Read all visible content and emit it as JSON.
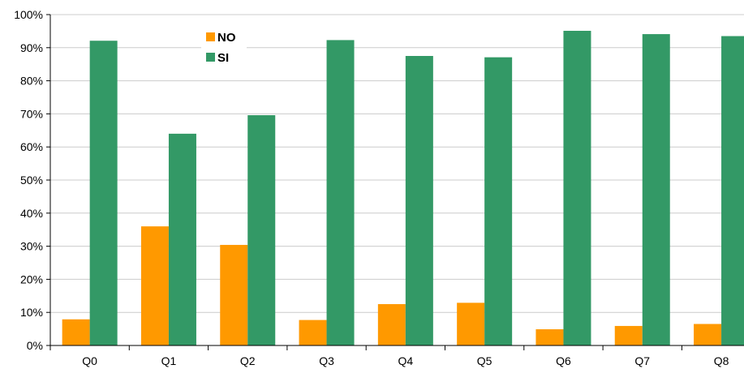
{
  "chart_data": {
    "type": "bar",
    "title": "",
    "xlabel": "",
    "ylabel": "",
    "categories": [
      "Q0",
      "Q1",
      "Q2",
      "Q3",
      "Q4",
      "Q5",
      "Q6",
      "Q7",
      "Q8"
    ],
    "series": [
      {
        "name": "NO",
        "color": "#FF9900",
        "values": [
          7.9,
          36.0,
          30.4,
          7.7,
          12.5,
          12.9,
          4.9,
          5.9,
          6.5
        ]
      },
      {
        "name": "SI",
        "color": "#339966",
        "values": [
          92.1,
          64.0,
          69.6,
          92.3,
          87.5,
          87.1,
          95.1,
          94.1,
          93.5
        ]
      }
    ],
    "ylim": [
      0,
      100
    ],
    "yticks": [
      "0%",
      "10%",
      "20%",
      "30%",
      "40%",
      "50%",
      "60%",
      "70%",
      "80%",
      "90%",
      "100%"
    ],
    "grid": true,
    "legend_position": "top-left"
  }
}
